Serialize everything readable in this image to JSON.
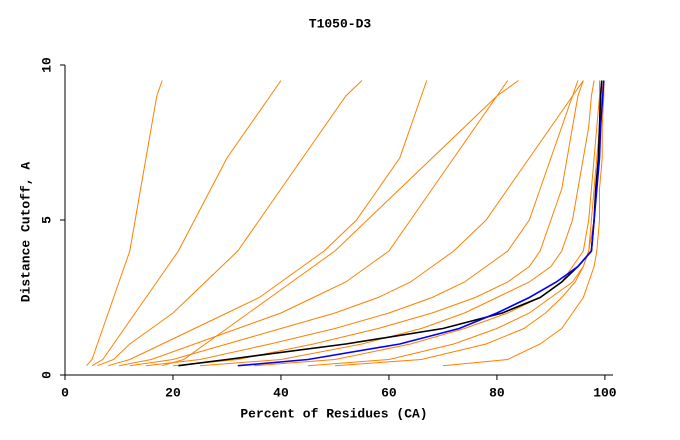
{
  "chart_data": {
    "type": "line",
    "title": "T1050-D3",
    "x_label": "Percent of Residues (CA)",
    "y_label": "Distance Cutoff, A",
    "xlim": [
      0,
      101.5
    ],
    "xticks": [
      0,
      20,
      40,
      60,
      80,
      100
    ],
    "ylim": [
      0,
      10
    ],
    "yticks": [
      0,
      5,
      10
    ],
    "y": [
      0.3,
      0.5,
      1,
      1.5,
      2,
      2.5,
      3,
      3.5,
      4,
      5,
      6,
      7,
      8,
      9,
      9.5
    ],
    "series": [
      {
        "color": "#ff8000",
        "x": [
          4,
          5,
          6,
          7,
          8,
          9,
          10,
          11,
          12,
          13,
          14,
          15,
          16,
          17,
          18
        ]
      },
      {
        "color": "#ff8000",
        "x": [
          5,
          7,
          9,
          11,
          13,
          15,
          17,
          19,
          21,
          24,
          27,
          30,
          34,
          38,
          40
        ]
      },
      {
        "color": "#ff8000",
        "x": [
          6,
          9,
          12,
          16,
          20,
          23,
          26,
          29,
          32,
          36,
          40,
          44,
          48,
          52,
          55
        ]
      },
      {
        "color": "#ff8000",
        "x": [
          8,
          12,
          18,
          24,
          30,
          36,
          40,
          44,
          48,
          54,
          58,
          62,
          64,
          66,
          67
        ]
      },
      {
        "color": "#ff8000",
        "x": [
          10,
          16,
          24,
          32,
          40,
          46,
          52,
          56,
          60,
          64,
          68,
          72,
          76,
          80,
          82
        ]
      },
      {
        "color": "#ff8000",
        "x": [
          12,
          20,
          30,
          40,
          50,
          58,
          64,
          68,
          72,
          78,
          82,
          86,
          90,
          94,
          96
        ]
      },
      {
        "color": "#ff8000",
        "x": [
          15,
          25,
          38,
          50,
          60,
          68,
          74,
          78,
          82,
          86,
          88,
          90,
          92,
          94,
          95
        ]
      },
      {
        "color": "#ff8000",
        "x": [
          20,
          32,
          46,
          58,
          68,
          76,
          82,
          86,
          88,
          90,
          92,
          93,
          94,
          95,
          96
        ]
      },
      {
        "color": "#ff8000",
        "x": [
          25,
          40,
          55,
          66,
          74,
          80,
          86,
          90,
          92,
          94,
          95,
          96,
          97,
          97.5,
          98
        ]
      },
      {
        "color": "#ff8000",
        "x": [
          35,
          50,
          64,
          74,
          82,
          88,
          92,
          94,
          96,
          97,
          97.5,
          98,
          98.5,
          99,
          99
        ]
      },
      {
        "color": "#ff8000",
        "x": [
          45,
          60,
          72,
          80,
          86,
          90,
          94,
          96,
          97,
          98,
          98.5,
          99,
          99,
          99.5,
          99.5
        ]
      },
      {
        "color": "#ff8000",
        "x": [
          70,
          82,
          88,
          92,
          94,
          96,
          97,
          98,
          98.5,
          99,
          99,
          99.5,
          99.5,
          99.8,
          99.8
        ]
      },
      {
        "color": "#ff8000",
        "x": [
          18,
          22,
          26,
          30,
          34,
          38,
          42,
          46,
          50,
          56,
          62,
          68,
          74,
          80,
          84
        ]
      },
      {
        "color": "#ff8000",
        "x": [
          50,
          66,
          78,
          85,
          89,
          92,
          94.5,
          96,
          97,
          97.5,
          98,
          98.5,
          99,
          99,
          99.5
        ]
      },
      {
        "color": "#000000",
        "x": [
          21,
          30,
          52,
          70,
          81,
          88,
          92,
          95,
          97.5,
          98,
          98.3,
          98.8,
          99,
          99.2,
          99.4
        ]
      },
      {
        "color": "#0000ff",
        "x": [
          32,
          45,
          62,
          73,
          80,
          86,
          91,
          95,
          97.5,
          98,
          98.5,
          99,
          99.2,
          99.6,
          99.8
        ]
      }
    ]
  }
}
